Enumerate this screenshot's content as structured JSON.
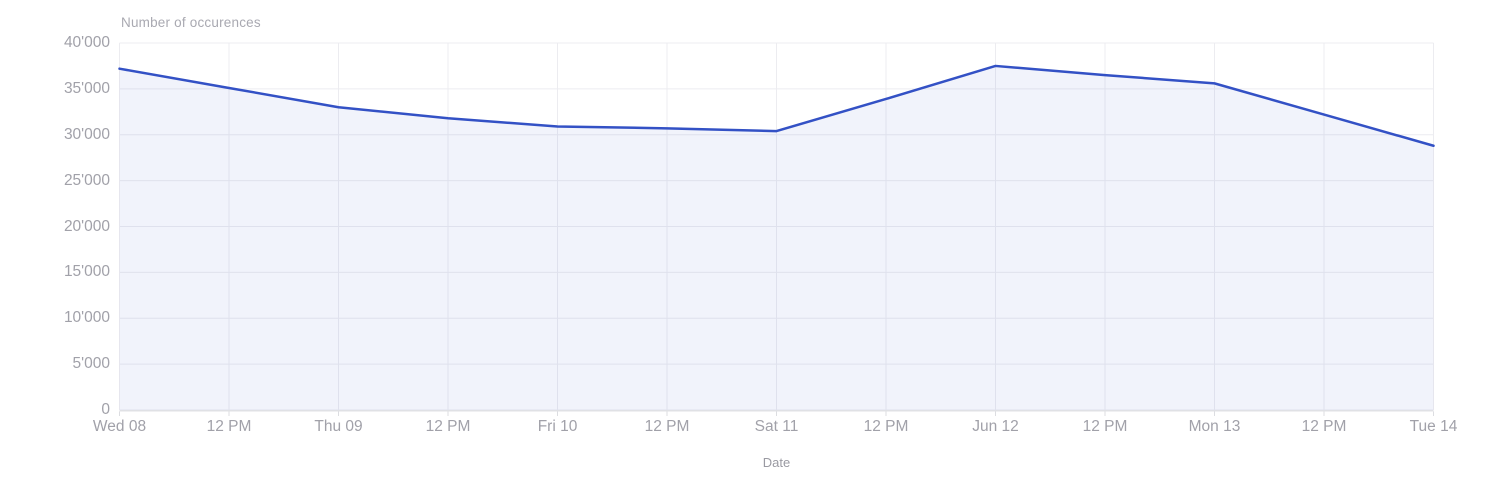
{
  "chart_data": {
    "type": "area",
    "title": "Number of occurences",
    "xlabel": "Date",
    "ylabel": "Number of occurences",
    "x_tick_labels": [
      "Wed 08",
      "12 PM",
      "Thu 09",
      "12 PM",
      "Fri 10",
      "12 PM",
      "Sat 11",
      "12 PM",
      "Jun 12",
      "12 PM",
      "Mon 13",
      "12 PM",
      "Tue 14"
    ],
    "y_tick_labels": [
      "0",
      "5'000",
      "10'000",
      "15'000",
      "20'000",
      "25'000",
      "30'000",
      "35'000",
      "40'000"
    ],
    "y_tick_values": [
      0,
      5000,
      10000,
      15000,
      20000,
      25000,
      30000,
      35000,
      40000
    ],
    "ylim": [
      0,
      40000
    ],
    "grid": true,
    "legend": "none",
    "series": [
      {
        "name": "occurrences",
        "values": [
          37200,
          35100,
          33000,
          31800,
          30900,
          30700,
          30400,
          33900,
          37500,
          36500,
          35600,
          32200,
          28800
        ]
      }
    ],
    "colors": {
      "line": "#3351c5",
      "fill": "rgba(51, 81, 197, 0.07)",
      "grid": "#ececf0",
      "axis_line": "#e0e1e5",
      "tick_mark": "#dcdde1",
      "tick_label": "#a1a1a9",
      "title": "#a9a9b1",
      "background": "#ffffff"
    }
  }
}
